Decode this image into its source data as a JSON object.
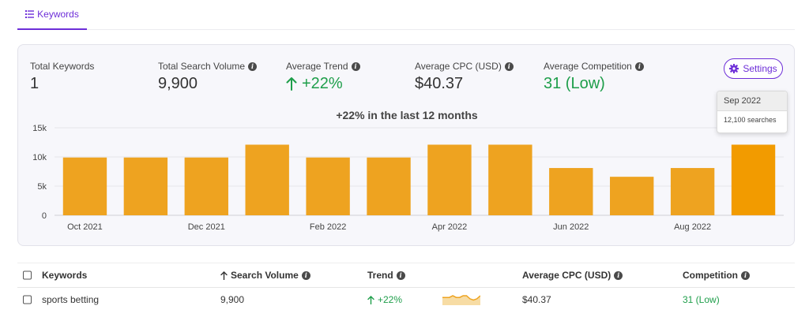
{
  "tabs": [
    {
      "label": "Keywords",
      "icon": "list-icon",
      "active": true
    }
  ],
  "metrics": [
    {
      "label": "Total Keywords",
      "value": "1",
      "info": false
    },
    {
      "label": "Total Search Volume",
      "value": "9,900",
      "info": true
    },
    {
      "label": "Average Trend",
      "value": "+22%",
      "info": true,
      "trend": "up"
    },
    {
      "label": "Average CPC (USD)",
      "value": "$40.37",
      "info": true
    },
    {
      "label": "Average Competition",
      "value": "31 (Low)",
      "info": true
    }
  ],
  "settings_label": "Settings",
  "chart_data": {
    "type": "bar",
    "title": "+22% in the last 12 months",
    "categories": [
      "Oct 2021",
      "Nov 2021",
      "Dec 2021",
      "Jan 2022",
      "Feb 2022",
      "Mar 2022",
      "Apr 2022",
      "May 2022",
      "Jun 2022",
      "Jul 2022",
      "Aug 2022",
      "Sep 2022"
    ],
    "x_tick_labels": [
      "Oct 2021",
      "Dec 2021",
      "Feb 2022",
      "Apr 2022",
      "Jun 2022",
      "Aug 2022"
    ],
    "values": [
      9900,
      9900,
      9900,
      12100,
      9900,
      9900,
      12100,
      12100,
      8100,
      6600,
      8100,
      12100
    ],
    "ylim": [
      0,
      15000
    ],
    "y_ticks": [
      0,
      5000,
      10000,
      15000
    ],
    "y_tick_labels": [
      "0",
      "5k",
      "10k",
      "15k"
    ],
    "bar_color": "#eea320",
    "highlight_color": "#f29b00",
    "grid": true,
    "highlighted_index": 11
  },
  "tooltip": {
    "title": "Sep 2022",
    "text": "12,100 searches"
  },
  "table": {
    "headers": {
      "keyword": "Keywords",
      "volume": "Search Volume",
      "trend": "Trend",
      "cpc": "Average CPC (USD)",
      "competition": "Competition"
    },
    "rows": [
      {
        "keyword": "sports betting",
        "volume": "9,900",
        "trend": "+22%",
        "cpc": "$40.37",
        "competition": "31 (Low)"
      }
    ]
  },
  "colors": {
    "accent": "#6d2ed8",
    "positive": "#1e9e4a",
    "bar": "#eea320"
  }
}
